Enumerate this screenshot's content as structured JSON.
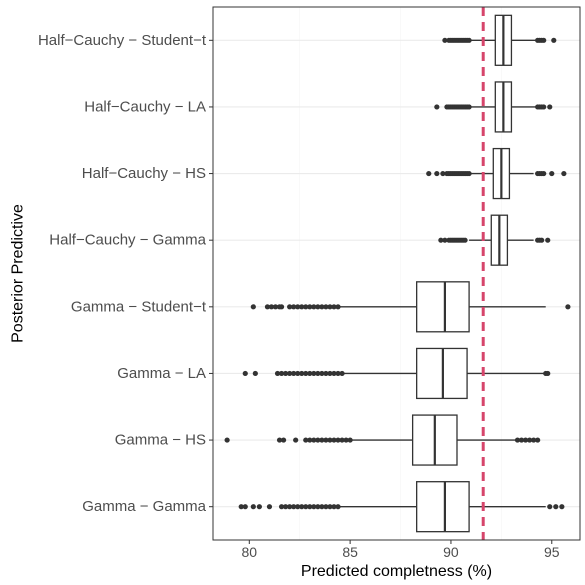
{
  "chart_data": {
    "type": "boxplot",
    "orientation": "horizontal",
    "xlabel": "Predicted completness (%)",
    "ylabel": "Posterior Predictive",
    "xlim": [
      78.2,
      96.4
    ],
    "xticks": [
      80,
      85,
      90,
      95
    ],
    "grid": true,
    "reference_line": {
      "x": 91.6,
      "style": "dashed",
      "color": "#d6456b"
    },
    "colors": {
      "box_stroke": "#333333",
      "outlier": "#333333",
      "grid_major": "#ebebeb",
      "grid_minor": "#f5f5f5",
      "panel_border": "#333333"
    },
    "categories": [
      "Half−Cauchy − Student−t",
      "Half−Cauchy − LA",
      "Half−Cauchy − HS",
      "Half−Cauchy − Gamma",
      "Gamma − Student−t",
      "Gamma − LA",
      "Gamma − HS",
      "Gamma − Gamma"
    ],
    "boxes": [
      {
        "whisker_low": 91.0,
        "q1": 92.2,
        "median": 92.6,
        "q3": 93.0,
        "whisker_high": 94.2,
        "outliers": [
          89.7,
          89.9,
          90.0,
          90.1,
          90.2,
          90.3,
          90.4,
          90.5,
          90.6,
          90.7,
          90.8,
          90.9,
          94.3,
          94.4,
          94.5,
          94.6,
          95.1
        ]
      },
      {
        "whisker_low": 91.0,
        "q1": 92.2,
        "median": 92.6,
        "q3": 93.0,
        "whisker_high": 94.2,
        "outliers": [
          89.3,
          89.8,
          89.9,
          90.0,
          90.1,
          90.2,
          90.3,
          90.4,
          90.5,
          90.6,
          90.7,
          90.8,
          90.9,
          94.3,
          94.4,
          94.5,
          94.6,
          94.9
        ]
      },
      {
        "whisker_low": 91.0,
        "q1": 92.1,
        "median": 92.5,
        "q3": 92.9,
        "whisker_high": 94.1,
        "outliers": [
          88.9,
          89.3,
          89.6,
          89.8,
          89.9,
          90.0,
          90.1,
          90.2,
          90.3,
          90.4,
          90.5,
          90.6,
          90.7,
          90.8,
          90.9,
          94.3,
          94.4,
          94.5,
          94.6,
          95.0,
          95.6
        ]
      },
      {
        "whisker_low": 90.9,
        "q1": 92.0,
        "median": 92.4,
        "q3": 92.8,
        "whisker_high": 94.1,
        "outliers": [
          89.5,
          89.7,
          89.9,
          90.0,
          90.1,
          90.2,
          90.3,
          90.4,
          90.5,
          90.6,
          90.7,
          94.3,
          94.4,
          94.5,
          94.8
        ]
      },
      {
        "whisker_low": 84.5,
        "q1": 88.3,
        "median": 89.7,
        "q3": 90.9,
        "whisker_high": 94.7,
        "outliers": [
          80.2,
          80.9,
          81.1,
          81.3,
          81.5,
          81.6,
          82.0,
          82.2,
          82.4,
          82.6,
          82.8,
          83.0,
          83.2,
          83.4,
          83.6,
          83.8,
          84.0,
          84.2,
          84.4,
          95.8
        ]
      },
      {
        "whisker_low": 84.7,
        "q1": 88.3,
        "median": 89.6,
        "q3": 90.8,
        "whisker_high": 94.6,
        "outliers": [
          79.8,
          80.3,
          81.4,
          81.6,
          81.8,
          82.0,
          82.2,
          82.4,
          82.6,
          82.8,
          83.0,
          83.2,
          83.4,
          83.6,
          83.8,
          84.0,
          84.2,
          84.4,
          84.6,
          94.7,
          94.8
        ]
      },
      {
        "whisker_low": 85.1,
        "q1": 88.1,
        "median": 89.2,
        "q3": 90.3,
        "whisker_high": 93.2,
        "outliers": [
          78.9,
          81.5,
          81.7,
          82.3,
          82.8,
          83.0,
          83.2,
          83.4,
          83.6,
          83.8,
          84.0,
          84.2,
          84.4,
          84.6,
          84.8,
          85.0,
          93.3,
          93.5,
          93.7,
          93.9,
          94.1,
          94.3
        ]
      },
      {
        "whisker_low": 84.5,
        "q1": 88.3,
        "median": 89.7,
        "q3": 90.9,
        "whisker_high": 94.7,
        "outliers": [
          79.6,
          79.8,
          80.2,
          80.5,
          81.0,
          81.6,
          81.8,
          82.0,
          82.2,
          82.4,
          82.6,
          82.8,
          83.0,
          83.2,
          83.4,
          83.6,
          83.8,
          84.0,
          84.2,
          84.4,
          94.9,
          95.2,
          95.5
        ]
      }
    ]
  }
}
